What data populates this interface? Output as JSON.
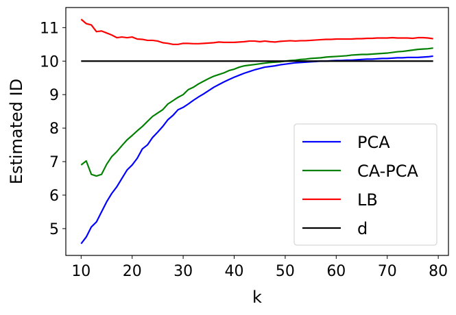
{
  "chart_data": {
    "type": "line",
    "title": "",
    "xlabel": "k",
    "ylabel": "Estimated ID",
    "xlim": [
      7,
      82
    ],
    "ylim": [
      4.2,
      11.6
    ],
    "xticks": [
      10,
      20,
      30,
      40,
      50,
      60,
      70,
      80
    ],
    "yticks": [
      5,
      6,
      7,
      8,
      9,
      10,
      11
    ],
    "grid": false,
    "legend": "lower-right",
    "series": [
      {
        "name": "PCA",
        "color": "#0000ff",
        "x": [
          10,
          11,
          12,
          13,
          14,
          15,
          16,
          17,
          18,
          19,
          20,
          21,
          22,
          23,
          24,
          25,
          26,
          27,
          28,
          29,
          30,
          31,
          32,
          33,
          34,
          35,
          36,
          37,
          38,
          39,
          40,
          41,
          42,
          43,
          44,
          45,
          46,
          47,
          48,
          49,
          50,
          51,
          52,
          53,
          54,
          55,
          56,
          57,
          58,
          59,
          60,
          61,
          62,
          63,
          64,
          65,
          66,
          67,
          68,
          69,
          70,
          71,
          72,
          73,
          74,
          75,
          76,
          77,
          78,
          79
        ],
        "y": [
          4.55,
          4.75,
          5.05,
          5.2,
          5.5,
          5.8,
          6.05,
          6.25,
          6.5,
          6.75,
          6.9,
          7.1,
          7.38,
          7.5,
          7.72,
          7.88,
          8.05,
          8.25,
          8.38,
          8.55,
          8.62,
          8.72,
          8.83,
          8.93,
          9.02,
          9.12,
          9.22,
          9.3,
          9.38,
          9.45,
          9.52,
          9.58,
          9.64,
          9.69,
          9.74,
          9.78,
          9.82,
          9.84,
          9.86,
          9.89,
          9.91,
          9.93,
          9.95,
          9.96,
          9.97,
          9.98,
          9.99,
          10.0,
          10.0,
          10.01,
          10.02,
          10.02,
          10.03,
          10.03,
          10.04,
          10.05,
          10.06,
          10.06,
          10.07,
          10.08,
          10.08,
          10.09,
          10.1,
          10.1,
          10.11,
          10.11,
          10.11,
          10.12,
          10.13,
          10.15
        ]
      },
      {
        "name": "CA-PCA",
        "color": "#008000",
        "x": [
          10,
          11,
          12,
          13,
          14,
          15,
          16,
          17,
          18,
          19,
          20,
          21,
          22,
          23,
          24,
          25,
          26,
          27,
          28,
          29,
          30,
          31,
          32,
          33,
          34,
          35,
          36,
          37,
          38,
          39,
          40,
          41,
          42,
          43,
          44,
          45,
          46,
          47,
          48,
          49,
          50,
          51,
          52,
          53,
          54,
          55,
          56,
          57,
          58,
          59,
          60,
          61,
          62,
          63,
          64,
          65,
          66,
          67,
          68,
          69,
          70,
          71,
          72,
          73,
          74,
          75,
          76,
          77,
          78,
          79
        ],
        "y": [
          6.9,
          7.02,
          6.62,
          6.57,
          6.62,
          6.92,
          7.15,
          7.3,
          7.48,
          7.65,
          7.78,
          7.92,
          8.05,
          8.2,
          8.35,
          8.45,
          8.55,
          8.72,
          8.82,
          8.92,
          9.0,
          9.15,
          9.22,
          9.32,
          9.4,
          9.48,
          9.55,
          9.6,
          9.65,
          9.72,
          9.76,
          9.82,
          9.86,
          9.88,
          9.9,
          9.92,
          9.94,
          9.96,
          9.97,
          9.98,
          10.0,
          10.02,
          10.03,
          10.05,
          10.06,
          10.08,
          10.09,
          10.1,
          10.12,
          10.13,
          10.14,
          10.15,
          10.16,
          10.18,
          10.19,
          10.2,
          10.2,
          10.21,
          10.22,
          10.23,
          10.24,
          10.26,
          10.28,
          10.29,
          10.31,
          10.33,
          10.35,
          10.36,
          10.37,
          10.39
        ]
      },
      {
        "name": "LB",
        "color": "#ff0000",
        "x": [
          10,
          11,
          12,
          13,
          14,
          15,
          16,
          17,
          18,
          19,
          20,
          21,
          22,
          23,
          24,
          25,
          26,
          27,
          28,
          29,
          30,
          31,
          32,
          33,
          34,
          35,
          36,
          37,
          38,
          39,
          40,
          41,
          42,
          43,
          44,
          45,
          46,
          47,
          48,
          49,
          50,
          51,
          52,
          53,
          54,
          55,
          56,
          57,
          58,
          59,
          60,
          61,
          62,
          63,
          64,
          65,
          66,
          67,
          68,
          69,
          70,
          71,
          72,
          73,
          74,
          75,
          76,
          77,
          78,
          79
        ],
        "y": [
          11.25,
          11.12,
          11.08,
          10.88,
          10.9,
          10.84,
          10.78,
          10.7,
          10.72,
          10.7,
          10.72,
          10.66,
          10.65,
          10.62,
          10.62,
          10.6,
          10.55,
          10.53,
          10.5,
          10.5,
          10.53,
          10.53,
          10.52,
          10.52,
          10.53,
          10.54,
          10.55,
          10.57,
          10.56,
          10.56,
          10.56,
          10.57,
          10.58,
          10.6,
          10.6,
          10.58,
          10.6,
          10.58,
          10.57,
          10.59,
          10.6,
          10.61,
          10.6,
          10.61,
          10.61,
          10.62,
          10.63,
          10.64,
          10.65,
          10.65,
          10.66,
          10.66,
          10.66,
          10.66,
          10.67,
          10.67,
          10.68,
          10.68,
          10.69,
          10.69,
          10.69,
          10.7,
          10.69,
          10.69,
          10.69,
          10.68,
          10.7,
          10.7,
          10.69,
          10.67
        ]
      },
      {
        "name": "d",
        "color": "#000000",
        "x": [
          10,
          79
        ],
        "y": [
          10,
          10
        ]
      }
    ]
  }
}
